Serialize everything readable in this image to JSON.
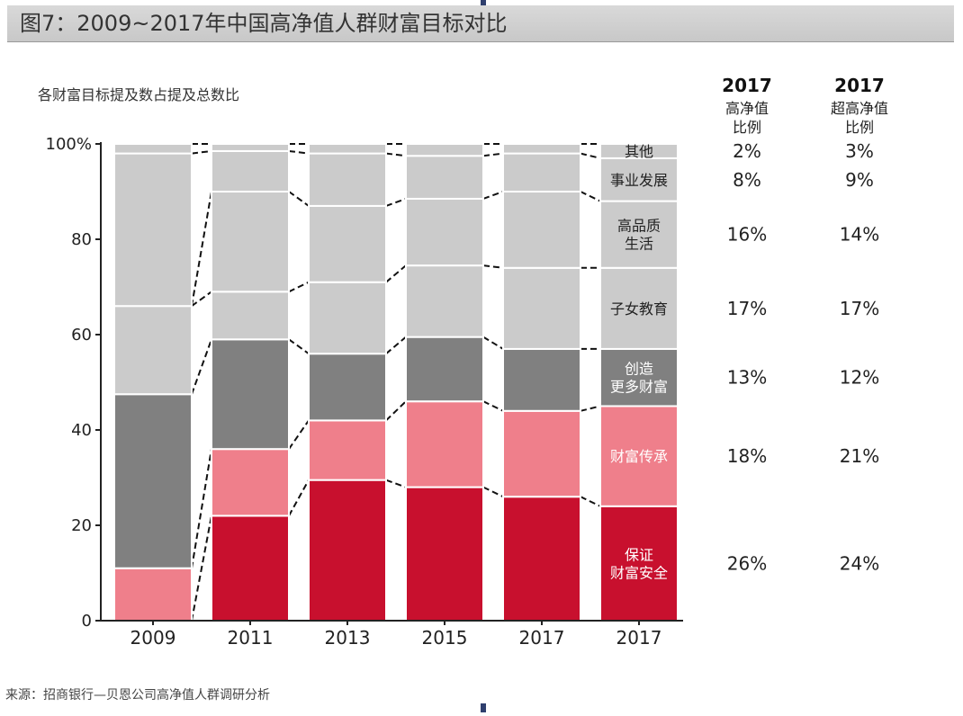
{
  "header": {
    "title": "图7：2009~2017年中国高净值人群财富目标对比"
  },
  "subtitle": "各财富目标提及数占提及总数比",
  "source": "来源：招商银行—贝恩公司高净值人群调研分析",
  "columns": {
    "col1": {
      "year": "2017",
      "line1": "高净值",
      "line2": "比例"
    },
    "col2": {
      "year": "2017",
      "line1": "超高净值",
      "line2": "比例"
    }
  },
  "colors": {
    "safety": "#c8102e",
    "inheritance": "#ef7f8b",
    "create": "#808080",
    "light": "#cbcbcb",
    "axis": "#222222"
  },
  "chart_data": {
    "type": "bar",
    "stacked": true,
    "title": "",
    "xlabel": "",
    "ylabel": "",
    "ylim": [
      0,
      100
    ],
    "yticks": [
      "0",
      "20",
      "40",
      "60",
      "80",
      "100%"
    ],
    "categories": [
      "2009",
      "2011",
      "2013",
      "2015",
      "2017",
      "2017"
    ],
    "series": [
      {
        "name": "保证财富安全",
        "color": "#c8102e",
        "values": [
          0,
          22,
          29.5,
          28,
          26,
          24
        ]
      },
      {
        "name": "财富传承",
        "color": "#ef7f8b",
        "values": [
          11,
          14,
          12.5,
          18,
          18,
          21
        ]
      },
      {
        "name": "创造更多财富",
        "color": "#808080",
        "values": [
          36.5,
          23,
          14,
          13.5,
          13,
          12
        ]
      },
      {
        "name": "子女教育",
        "color": "#cbcbcb",
        "values": [
          18.5,
          10,
          15,
          15,
          17,
          17
        ]
      },
      {
        "name": "高品质生活",
        "color": "#cbcbcb",
        "values": [
          0,
          21,
          16,
          14,
          16,
          14
        ]
      },
      {
        "name": "事业发展",
        "color": "#cbcbcb",
        "values": [
          32,
          8.5,
          11,
          9,
          8,
          9
        ]
      },
      {
        "name": "其他",
        "color": "#cbcbcb",
        "values": [
          2,
          1.5,
          2,
          2.5,
          2,
          3
        ]
      }
    ],
    "segment_labels": [
      {
        "text": "保证\n财富安全",
        "color": "#ffffff"
      },
      {
        "text": "财富传承",
        "color": "#ffffff"
      },
      {
        "text": "创造\n更多财富",
        "color": "#ffffff"
      },
      {
        "text": "子女教育",
        "color": "#222222"
      },
      {
        "text": "高品质\n生活",
        "color": "#222222"
      },
      {
        "text": "事业发展",
        "color": "#222222"
      },
      {
        "text": "其他",
        "color": "#222222"
      }
    ],
    "table_hnw": [
      "26%",
      "18%",
      "13%",
      "17%",
      "16%",
      "8%",
      "2%"
    ],
    "table_uhnw": [
      "24%",
      "21%",
      "12%",
      "17%",
      "14%",
      "9%",
      "3%"
    ]
  }
}
